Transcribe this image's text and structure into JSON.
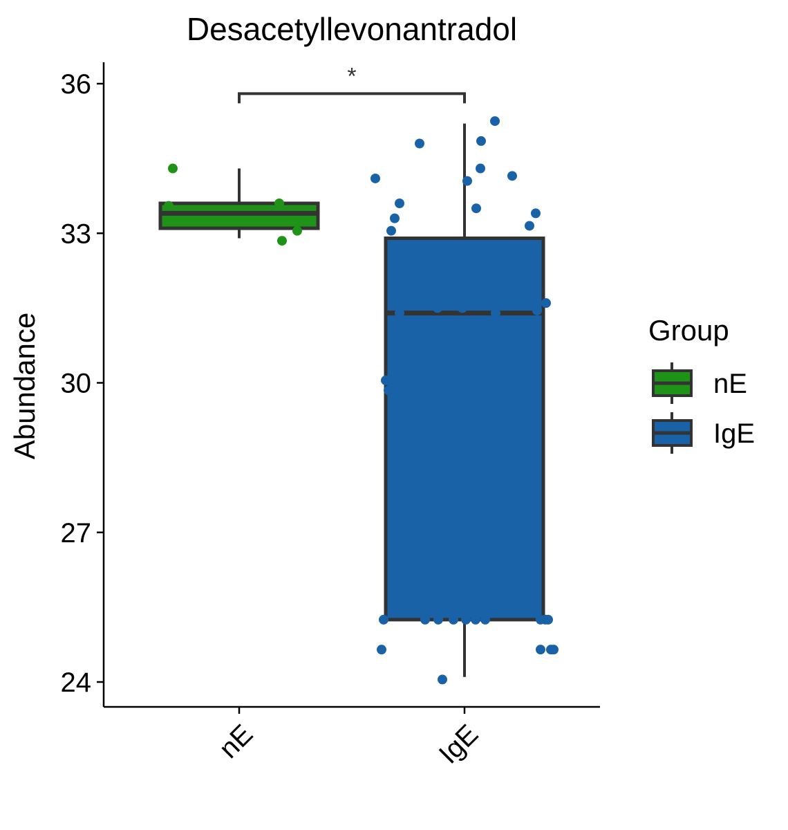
{
  "chart_data": {
    "type": "box",
    "title": "Desacetyllevonantradol",
    "xlabel": "",
    "ylabel": "Abundance",
    "ylim": [
      23.5,
      36.4
    ],
    "yticks": [
      24,
      27,
      30,
      33,
      36
    ],
    "categories": [
      "nE",
      "IgE"
    ],
    "grid": false,
    "legend": {
      "title": "Group",
      "position": "right",
      "entries": [
        "nE",
        "IgE"
      ]
    },
    "series": [
      {
        "name": "nE",
        "color": "#1f9318",
        "box": {
          "min": 32.9,
          "q1": 33.1,
          "median": 33.4,
          "q3": 33.6,
          "max": 34.3
        },
        "points": [
          34.3,
          33.55,
          33.6,
          33.05,
          32.85
        ]
      },
      {
        "name": "IgE",
        "color": "#1a62a8",
        "box": {
          "min": 24.1,
          "q1": 25.25,
          "median": 31.4,
          "q3": 32.9,
          "max": 35.2
        },
        "points": [
          35.25,
          34.85,
          34.8,
          34.3,
          34.15,
          34.1,
          34.05,
          33.6,
          33.5,
          33.4,
          33.3,
          33.15,
          33.05,
          31.6,
          31.5,
          31.5,
          31.45,
          31.4,
          31.4,
          30.05,
          29.85,
          25.25,
          25.25,
          25.25,
          25.25,
          25.25,
          25.25,
          25.25,
          25.25,
          25.25,
          25.25,
          24.65,
          24.65,
          24.65,
          24.65,
          24.05
        ]
      }
    ],
    "annotations": [
      {
        "type": "significance",
        "between": [
          "nE",
          "IgE"
        ],
        "y": 35.8,
        "label": "*"
      }
    ]
  }
}
